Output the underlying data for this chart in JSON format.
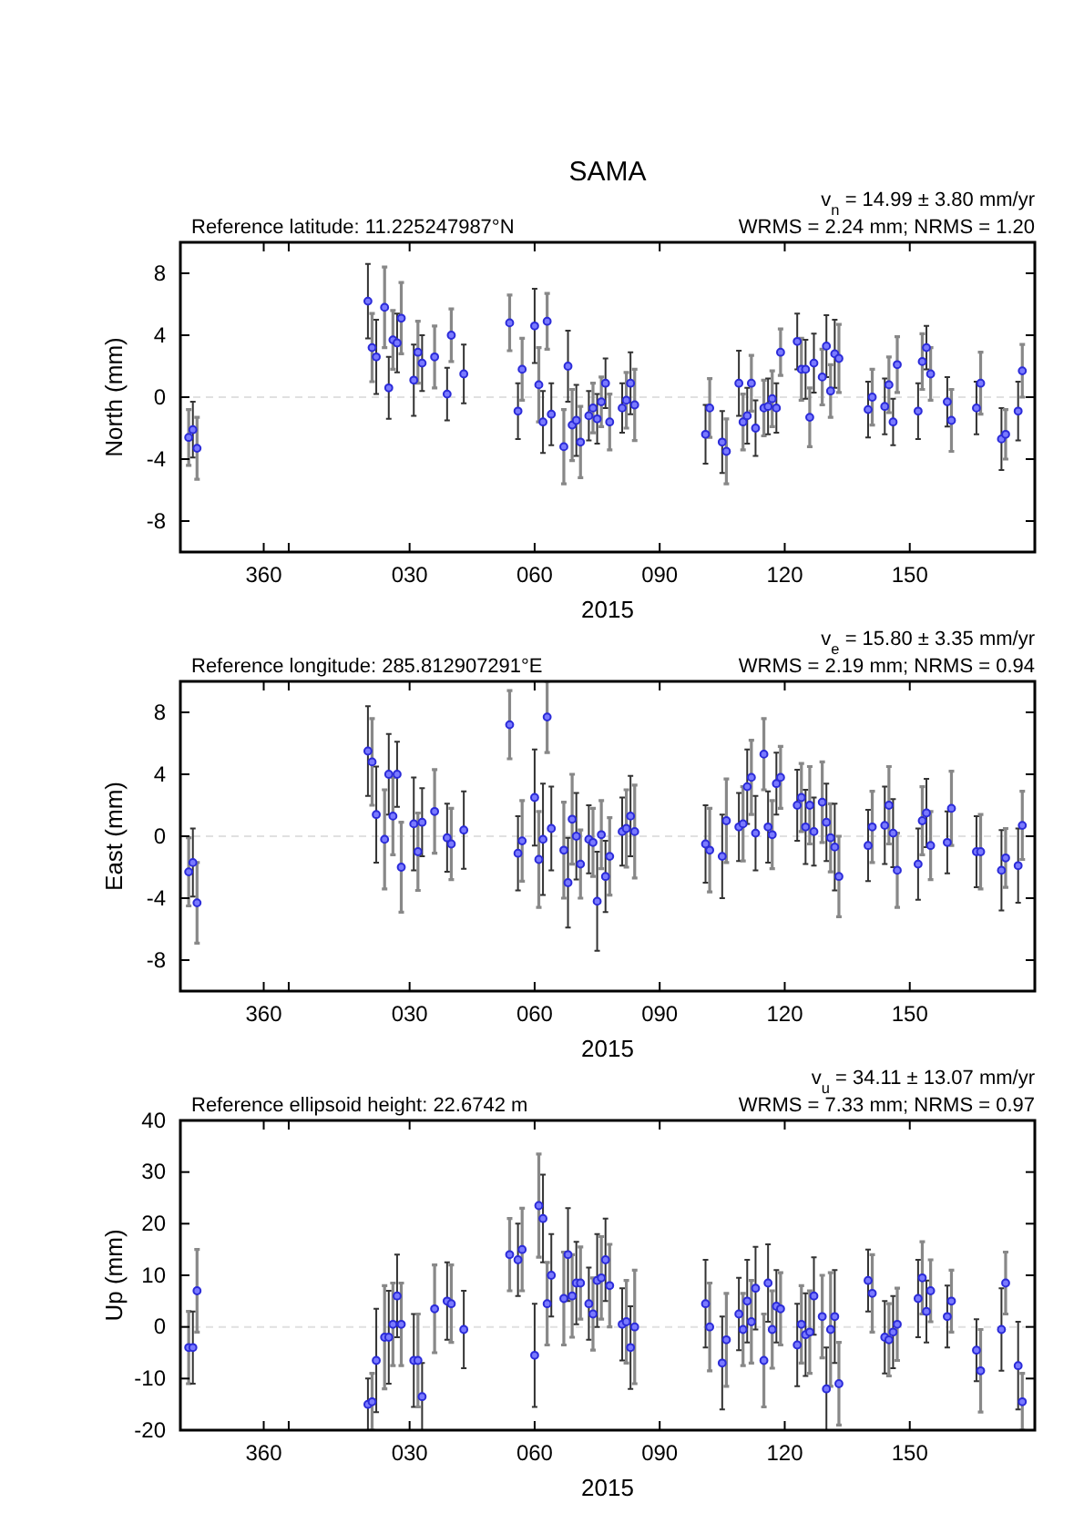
{
  "chart_data": [
    {
      "type": "scatter",
      "title": "SAMA",
      "ylabel": "North (mm)",
      "xlabel": "2015",
      "annotations": [
        "Reference latitude: 11.225247987°N",
        "v$_{n}$ = 14.99 ± 3.80 mm/yr",
        "WRMS = 2.24 mm; NRMS = 1.20"
      ],
      "color": "#2b2bd9",
      "marker": "circle",
      "x": [
        "2014-12-08",
        "2014-12-09",
        "2014-12-10",
        "2015-01-20",
        "2015-01-21",
        "2015-01-22",
        "2015-01-24",
        "2015-01-25",
        "2015-01-26",
        "2015-01-27",
        "2015-01-28",
        "2015-01-31",
        "2015-02-01",
        "2015-02-02",
        "2015-02-05",
        "2015-02-08",
        "2015-02-09",
        "2015-02-12",
        "2015-02-23",
        "2015-02-25",
        "2015-02-26",
        "2015-03-01",
        "2015-03-02",
        "2015-03-03",
        "2015-03-04",
        "2015-03-05",
        "2015-03-08",
        "2015-03-09",
        "2015-03-10",
        "2015-03-11",
        "2015-03-12",
        "2015-03-14",
        "2015-03-15",
        "2015-03-16",
        "2015-03-17",
        "2015-03-18",
        "2015-03-19",
        "2015-03-22",
        "2015-03-23",
        "2015-03-24",
        "2015-03-25",
        "2015-04-11",
        "2015-04-12",
        "2015-04-15",
        "2015-04-16",
        "2015-04-19",
        "2015-04-20",
        "2015-04-21",
        "2015-04-22",
        "2015-04-23",
        "2015-04-25",
        "2015-04-26",
        "2015-04-27",
        "2015-04-28",
        "2015-04-29",
        "2015-05-03",
        "2015-05-04",
        "2015-05-05",
        "2015-05-06",
        "2015-05-07",
        "2015-05-09",
        "2015-05-10",
        "2015-05-11",
        "2015-05-12",
        "2015-05-13",
        "2015-05-20",
        "2015-05-21",
        "2015-05-24",
        "2015-05-25",
        "2015-05-26",
        "2015-05-27",
        "2015-06-01",
        "2015-06-02",
        "2015-06-03",
        "2015-06-04",
        "2015-06-08",
        "2015-06-09",
        "2015-06-15",
        "2015-06-16",
        "2015-06-21",
        "2015-06-22",
        "2015-06-25",
        "2015-06-26"
      ],
      "values": [
        -2.6,
        -2.1,
        -3.3,
        6.2,
        3.2,
        2.6,
        5.8,
        0.6,
        3.7,
        3.5,
        5.1,
        1.1,
        2.9,
        2.2,
        2.6,
        0.2,
        4.0,
        1.5,
        4.8,
        -0.9,
        1.8,
        4.6,
        0.8,
        -1.6,
        4.9,
        -1.1,
        -3.2,
        2.0,
        -1.8,
        -1.5,
        -2.9,
        -1.2,
        -0.7,
        -1.4,
        -0.3,
        0.9,
        -1.6,
        -0.7,
        -0.2,
        0.9,
        -0.5,
        -2.4,
        -0.7,
        -2.9,
        -3.5,
        0.9,
        -1.6,
        -1.2,
        0.9,
        -2.0,
        -0.7,
        -0.6,
        -0.1,
        -0.7,
        2.9,
        3.6,
        1.8,
        1.8,
        -1.3,
        2.2,
        1.3,
        3.3,
        0.4,
        2.8,
        2.5,
        -0.8,
        0.0,
        -0.6,
        0.8,
        -1.6,
        2.1,
        -0.9,
        2.3,
        3.2,
        1.5,
        -0.3,
        -1.5,
        -0.7,
        0.9,
        -2.7,
        -2.4,
        -0.9,
        1.7
      ],
      "errors": [
        1.8,
        1.8,
        2.0,
        2.4,
        2.2,
        2.4,
        2.6,
        2.0,
        1.9,
        1.9,
        2.3,
        2.3,
        2.0,
        1.8,
        2.0,
        1.7,
        1.7,
        1.9,
        1.8,
        1.8,
        2.0,
        2.4,
        2.4,
        2.0,
        1.8,
        2.0,
        2.4,
        2.3,
        2.3,
        2.3,
        2.3,
        1.6,
        1.6,
        1.6,
        1.6,
        1.6,
        1.8,
        1.6,
        1.8,
        2.0,
        2.3,
        1.9,
        1.9,
        2.0,
        2.1,
        2.1,
        1.8,
        1.8,
        1.8,
        1.8,
        1.8,
        1.8,
        1.8,
        1.6,
        1.5,
        1.8,
        2.0,
        1.9,
        1.9,
        1.9,
        1.8,
        2.0,
        1.7,
        2.2,
        2.2,
        1.8,
        1.8,
        1.8,
        1.8,
        1.5,
        1.8,
        1.8,
        1.8,
        1.4,
        1.7,
        1.6,
        2.0,
        1.7,
        2.0,
        2.0,
        1.6,
        1.9,
        1.7
      ],
      "xlim": [
        "2014-12-06",
        "2015-06-29"
      ],
      "xticks": [
        {
          "value": "2014-12-26",
          "label": "360"
        },
        {
          "value": "2015-01-01",
          "label": null
        },
        {
          "value": "2015-01-30",
          "label": "030"
        },
        {
          "value": "2015-03-01",
          "label": "060"
        },
        {
          "value": "2015-03-31",
          "label": "090"
        },
        {
          "value": "2015-04-30",
          "label": "120"
        },
        {
          "value": "2015-05-30",
          "label": "150"
        }
      ],
      "ylim": [
        -10,
        10
      ],
      "yticks": [
        -8,
        -4,
        0,
        4,
        8
      ],
      "ref_lines": [
        {
          "axis": "y",
          "value": 0,
          "color": "#e0e0e0",
          "line_style": "dashed"
        }
      ]
    },
    {
      "type": "scatter",
      "ylabel": "East (mm)",
      "xlabel": "2015",
      "annotations": [
        "Reference longitude: 285.812907291°E",
        "v$_{e}$ = 15.80 ± 3.35 mm/yr",
        "WRMS = 2.19 mm; NRMS = 0.94"
      ],
      "color": "#2b2bd9",
      "marker": "circle",
      "x": [
        "2014-12-08",
        "2014-12-09",
        "2014-12-10",
        "2015-01-20",
        "2015-01-21",
        "2015-01-22",
        "2015-01-24",
        "2015-01-25",
        "2015-01-26",
        "2015-01-27",
        "2015-01-28",
        "2015-01-31",
        "2015-02-01",
        "2015-02-02",
        "2015-02-05",
        "2015-02-08",
        "2015-02-09",
        "2015-02-12",
        "2015-02-23",
        "2015-02-25",
        "2015-02-26",
        "2015-03-01",
        "2015-03-02",
        "2015-03-03",
        "2015-03-04",
        "2015-03-05",
        "2015-03-08",
        "2015-03-09",
        "2015-03-10",
        "2015-03-11",
        "2015-03-12",
        "2015-03-14",
        "2015-03-15",
        "2015-03-16",
        "2015-03-17",
        "2015-03-18",
        "2015-03-19",
        "2015-03-22",
        "2015-03-23",
        "2015-03-24",
        "2015-03-25",
        "2015-04-11",
        "2015-04-12",
        "2015-04-15",
        "2015-04-16",
        "2015-04-19",
        "2015-04-20",
        "2015-04-21",
        "2015-04-22",
        "2015-04-23",
        "2015-04-25",
        "2015-04-26",
        "2015-04-27",
        "2015-04-28",
        "2015-04-29",
        "2015-05-03",
        "2015-05-04",
        "2015-05-05",
        "2015-05-06",
        "2015-05-07",
        "2015-05-09",
        "2015-05-10",
        "2015-05-11",
        "2015-05-12",
        "2015-05-13",
        "2015-05-20",
        "2015-05-21",
        "2015-05-24",
        "2015-05-25",
        "2015-05-26",
        "2015-05-27",
        "2015-06-01",
        "2015-06-02",
        "2015-06-03",
        "2015-06-04",
        "2015-06-08",
        "2015-06-09",
        "2015-06-15",
        "2015-06-16",
        "2015-06-21",
        "2015-06-22",
        "2015-06-25",
        "2015-06-26"
      ],
      "values": [
        -2.3,
        -1.7,
        -4.3,
        5.5,
        4.8,
        1.4,
        -0.2,
        4.0,
        1.3,
        4.0,
        -2.0,
        0.8,
        -1.0,
        0.9,
        1.6,
        -0.1,
        -0.5,
        0.4,
        7.2,
        -1.1,
        -0.3,
        2.5,
        -1.5,
        -0.2,
        7.7,
        0.5,
        -0.9,
        -3.0,
        1.1,
        0,
        -1.8,
        -0.2,
        -0.4,
        -4.2,
        0.1,
        -2.6,
        -1.3,
        0.3,
        0.5,
        1.3,
        0.3,
        -0.5,
        -0.9,
        -1.3,
        1.0,
        0.6,
        0.8,
        3.2,
        3.8,
        0.2,
        5.3,
        0.6,
        0.1,
        3.4,
        3.8,
        2.0,
        2.5,
        0.6,
        2.0,
        0.3,
        2.2,
        0.9,
        -0.1,
        -0.7,
        -2.6,
        -0.6,
        0.6,
        0.7,
        2.0,
        0.2,
        -2.2,
        -1.8,
        1.0,
        1.5,
        -0.6,
        -0.4,
        1.8,
        -1.0,
        -1.0,
        -2.2,
        -1.4,
        -1.9,
        0.7
      ],
      "errors": [
        2.2,
        2.2,
        2.6,
        2.9,
        2.8,
        3.1,
        3.2,
        2.6,
        2.5,
        2.1,
        2.9,
        3.0,
        2.5,
        2.2,
        2.7,
        2.2,
        2.3,
        2.5,
        2.2,
        2.4,
        2.6,
        3.1,
        3.1,
        3.6,
        2.3,
        2.7,
        3.1,
        2.9,
        2.9,
        2.8,
        2.2,
        2.2,
        2.2,
        3.2,
        2.2,
        2.3,
        2.5,
        2.2,
        2.5,
        2.6,
        3.0,
        2.5,
        2.7,
        2.7,
        2.7,
        2.2,
        2.4,
        2.4,
        2.4,
        2.4,
        2.3,
        2.3,
        2.2,
        2.0,
        2.0,
        2.3,
        2.2,
        2.4,
        2.5,
        2.2,
        2.6,
        2.5,
        2.2,
        2.8,
        2.6,
        2.3,
        2.3,
        2.5,
        2.5,
        2.2,
        2.4,
        2.3,
        2.2,
        2.2,
        2.2,
        2.0,
        2.4,
        2.3,
        2.4,
        2.6,
        1.9,
        2.4,
        2.2
      ],
      "xlim": [
        "2014-12-06",
        "2015-06-29"
      ],
      "xticks": [
        {
          "value": "2014-12-26",
          "label": "360"
        },
        {
          "value": "2015-01-01",
          "label": null
        },
        {
          "value": "2015-01-30",
          "label": "030"
        },
        {
          "value": "2015-03-01",
          "label": "060"
        },
        {
          "value": "2015-03-31",
          "label": "090"
        },
        {
          "value": "2015-04-30",
          "label": "120"
        },
        {
          "value": "2015-05-30",
          "label": "150"
        }
      ],
      "ylim": [
        -10,
        10
      ],
      "yticks": [
        -8,
        -4,
        0,
        4,
        8
      ],
      "ref_lines": [
        {
          "axis": "y",
          "value": 0,
          "color": "#e0e0e0",
          "line_style": "dashed"
        }
      ]
    },
    {
      "type": "scatter",
      "ylabel": "Up (mm)",
      "xlabel": "2015",
      "annotations": [
        "Reference ellipsoid height: 22.6742 m",
        "v$_{u}$ = 34.11 ± 13.07 mm/yr",
        "WRMS = 7.33 mm; NRMS = 0.97"
      ],
      "color": "#2b2bd9",
      "marker": "circle",
      "x": [
        "2014-12-08",
        "2014-12-09",
        "2014-12-10",
        "2015-01-20",
        "2015-01-21",
        "2015-01-22",
        "2015-01-24",
        "2015-01-25",
        "2015-01-26",
        "2015-01-27",
        "2015-01-28",
        "2015-01-31",
        "2015-02-01",
        "2015-02-02",
        "2015-02-05",
        "2015-02-08",
        "2015-02-09",
        "2015-02-12",
        "2015-02-23",
        "2015-02-25",
        "2015-02-26",
        "2015-03-01",
        "2015-03-02",
        "2015-03-03",
        "2015-03-04",
        "2015-03-05",
        "2015-03-08",
        "2015-03-09",
        "2015-03-10",
        "2015-03-11",
        "2015-03-12",
        "2015-03-14",
        "2015-03-15",
        "2015-03-16",
        "2015-03-17",
        "2015-03-18",
        "2015-03-19",
        "2015-03-22",
        "2015-03-23",
        "2015-03-24",
        "2015-03-25",
        "2015-04-11",
        "2015-04-12",
        "2015-04-15",
        "2015-04-16",
        "2015-04-19",
        "2015-04-20",
        "2015-04-21",
        "2015-04-22",
        "2015-04-23",
        "2015-04-25",
        "2015-04-26",
        "2015-04-27",
        "2015-04-28",
        "2015-04-29",
        "2015-05-03",
        "2015-05-04",
        "2015-05-05",
        "2015-05-06",
        "2015-05-07",
        "2015-05-09",
        "2015-05-10",
        "2015-05-11",
        "2015-05-12",
        "2015-05-13",
        "2015-05-20",
        "2015-05-21",
        "2015-05-24",
        "2015-05-25",
        "2015-05-26",
        "2015-05-27",
        "2015-06-01",
        "2015-06-02",
        "2015-06-03",
        "2015-06-04",
        "2015-06-08",
        "2015-06-09",
        "2015-06-15",
        "2015-06-16",
        "2015-06-21",
        "2015-06-22",
        "2015-06-25",
        "2015-06-26"
      ],
      "values": [
        -4,
        -4,
        7,
        -15,
        -14.5,
        -6.5,
        -2,
        -2,
        0.5,
        6,
        0.5,
        -6.5,
        -6.5,
        -13.5,
        3.5,
        5,
        4.5,
        -0.5,
        14,
        13,
        15,
        -5.5,
        23.5,
        21,
        4.5,
        10,
        5.5,
        14,
        6,
        8.5,
        8.5,
        4.5,
        2.5,
        9,
        9.5,
        13,
        8,
        0.5,
        1,
        -4,
        0,
        4.5,
        0,
        -7,
        -2.5,
        2.5,
        -0.5,
        5,
        1,
        7.5,
        -6.5,
        8.5,
        -0.5,
        4,
        3.5,
        -3.5,
        0.5,
        -1.5,
        -1,
        6,
        2,
        -12,
        -0.5,
        2,
        -11,
        9,
        6.5,
        -2,
        -2.5,
        -1,
        0.5,
        5.5,
        9.5,
        3,
        7,
        2,
        5,
        -4.5,
        -8.5,
        -0.5,
        8.5,
        -7.5,
        -14.5
      ],
      "errors": [
        7,
        7,
        8,
        5,
        5.5,
        10,
        10,
        9,
        8,
        8,
        8,
        9,
        9,
        6.5,
        8.5,
        7.5,
        7.5,
        7.5,
        7,
        7,
        8,
        10,
        10,
        8.5,
        8,
        8,
        9,
        9,
        8,
        8,
        7,
        7,
        7,
        9,
        8,
        8,
        8,
        7,
        8,
        8,
        11,
        8.5,
        8.5,
        9,
        9,
        7,
        7,
        8,
        8,
        8,
        9,
        7.5,
        7.5,
        7,
        7,
        8,
        7.5,
        8,
        8,
        7.5,
        8,
        8,
        11,
        9,
        8,
        6,
        7.5,
        7,
        7,
        7,
        7,
        7.5,
        7,
        6,
        6,
        6,
        6,
        6,
        8,
        8,
        6,
        8.5,
        5.5
      ],
      "xlim": [
        "2014-12-06",
        "2015-06-29"
      ],
      "xticks": [
        {
          "value": "2014-12-26",
          "label": "360"
        },
        {
          "value": "2015-01-01",
          "label": null
        },
        {
          "value": "2015-01-30",
          "label": "030"
        },
        {
          "value": "2015-03-01",
          "label": "060"
        },
        {
          "value": "2015-03-31",
          "label": "090"
        },
        {
          "value": "2015-04-30",
          "label": "120"
        },
        {
          "value": "2015-05-30",
          "label": "150"
        }
      ],
      "ylim": [
        -20,
        40
      ],
      "yticks": [
        -20,
        -10,
        0,
        10,
        20,
        30,
        40
      ],
      "ref_lines": [
        {
          "axis": "y",
          "value": 0,
          "color": "#e0e0e0",
          "line_style": "dashed"
        }
      ]
    }
  ]
}
